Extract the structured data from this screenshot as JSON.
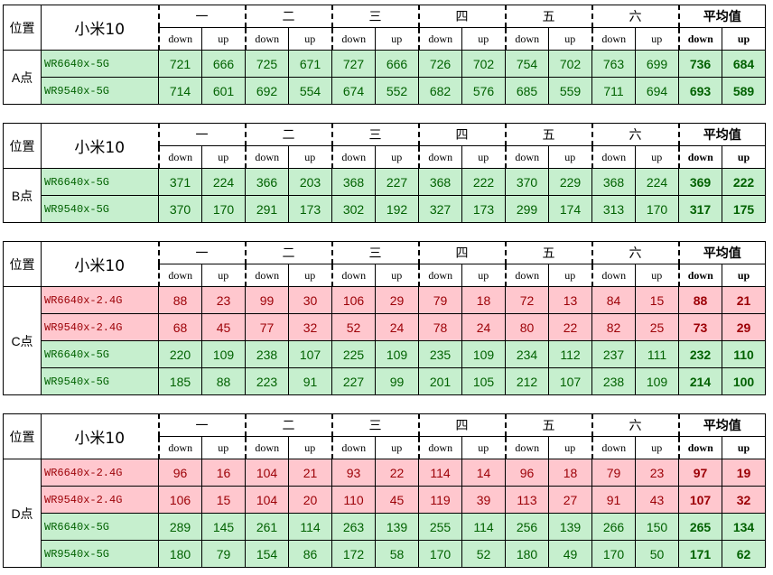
{
  "tables": [
    {
      "position_label": "位置",
      "device": "小米10",
      "location": "A点",
      "groups": [
        "一",
        "二",
        "三",
        "四",
        "五",
        "六",
        "平均值"
      ],
      "subheaders": [
        "down",
        "up",
        "down",
        "up",
        "down",
        "up",
        "down",
        "up",
        "down",
        "up",
        "down",
        "up",
        "down",
        "up"
      ],
      "rows": [
        {
          "name": "WR6640x-5G",
          "fill": "#c6efce",
          "color": "#006100",
          "values": [
            721,
            666,
            725,
            671,
            727,
            666,
            726,
            702,
            754,
            702,
            763,
            699,
            736,
            684
          ]
        },
        {
          "name": "WR9540x-5G",
          "fill": "#c6efce",
          "color": "#006100",
          "values": [
            714,
            601,
            692,
            554,
            674,
            552,
            682,
            576,
            685,
            559,
            711,
            694,
            693,
            589
          ]
        }
      ]
    },
    {
      "position_label": "位置",
      "device": "小米10",
      "location": "B点",
      "groups": [
        "一",
        "二",
        "三",
        "四",
        "五",
        "六",
        "平均值"
      ],
      "subheaders": [
        "down",
        "up",
        "down",
        "up",
        "down",
        "up",
        "down",
        "up",
        "down",
        "up",
        "down",
        "up",
        "down",
        "up"
      ],
      "rows": [
        {
          "name": "WR6640x-5G",
          "fill": "#c6efce",
          "color": "#006100",
          "values": [
            371,
            224,
            366,
            203,
            368,
            227,
            368,
            222,
            370,
            229,
            368,
            224,
            369,
            222
          ]
        },
        {
          "name": "WR9540x-5G",
          "fill": "#c6efce",
          "color": "#006100",
          "values": [
            370,
            170,
            291,
            173,
            302,
            192,
            327,
            173,
            299,
            174,
            313,
            170,
            317,
            175
          ]
        }
      ]
    },
    {
      "position_label": "位置",
      "device": "小米10",
      "location": "C点",
      "groups": [
        "一",
        "二",
        "三",
        "四",
        "五",
        "六",
        "平均值"
      ],
      "subheaders": [
        "down",
        "up",
        "down",
        "up",
        "down",
        "up",
        "down",
        "up",
        "down",
        "up",
        "down",
        "up",
        "down",
        "up"
      ],
      "rows": [
        {
          "name": "WR6640x-2.4G",
          "fill": "#ffc7ce",
          "color": "#9c0006",
          "values": [
            88,
            23,
            99,
            30,
            106,
            29,
            79,
            18,
            72,
            13,
            84,
            15,
            88,
            21
          ]
        },
        {
          "name": "WR9540x-2.4G",
          "fill": "#ffc7ce",
          "color": "#9c0006",
          "values": [
            68,
            45,
            77,
            32,
            52,
            24,
            78,
            24,
            80,
            22,
            82,
            25,
            73,
            29
          ]
        },
        {
          "name": "WR6640x-5G",
          "fill": "#c6efce",
          "color": "#006100",
          "values": [
            220,
            109,
            238,
            107,
            225,
            109,
            235,
            109,
            234,
            112,
            237,
            111,
            232,
            110
          ]
        },
        {
          "name": "WR9540x-5G",
          "fill": "#c6efce",
          "color": "#006100",
          "values": [
            185,
            88,
            223,
            91,
            227,
            99,
            201,
            105,
            212,
            107,
            238,
            109,
            214,
            100
          ]
        }
      ]
    },
    {
      "position_label": "位置",
      "device": "小米10",
      "location": "D点",
      "groups": [
        "一",
        "二",
        "三",
        "四",
        "五",
        "六",
        "平均值"
      ],
      "subheaders": [
        "down",
        "up",
        "down",
        "up",
        "down",
        "up",
        "down",
        "up",
        "down",
        "up",
        "down",
        "up",
        "down",
        "up"
      ],
      "rows": [
        {
          "name": "WR6640x-2.4G",
          "fill": "#ffc7ce",
          "color": "#9c0006",
          "values": [
            96,
            16,
            104,
            21,
            93,
            22,
            114,
            14,
            96,
            18,
            79,
            23,
            97,
            19
          ]
        },
        {
          "name": "WR9540x-2.4G",
          "fill": "#ffc7ce",
          "color": "#9c0006",
          "values": [
            106,
            15,
            104,
            20,
            110,
            45,
            119,
            39,
            113,
            27,
            91,
            43,
            107,
            32
          ]
        },
        {
          "name": "WR6640x-5G",
          "fill": "#c6efce",
          "color": "#006100",
          "values": [
            289,
            145,
            261,
            114,
            263,
            139,
            255,
            114,
            256,
            139,
            266,
            150,
            265,
            134
          ]
        },
        {
          "name": "WR9540x-5G",
          "fill": "#c6efce",
          "color": "#006100",
          "values": [
            180,
            79,
            154,
            86,
            172,
            58,
            170,
            52,
            180,
            49,
            170,
            50,
            171,
            62
          ]
        }
      ]
    }
  ]
}
